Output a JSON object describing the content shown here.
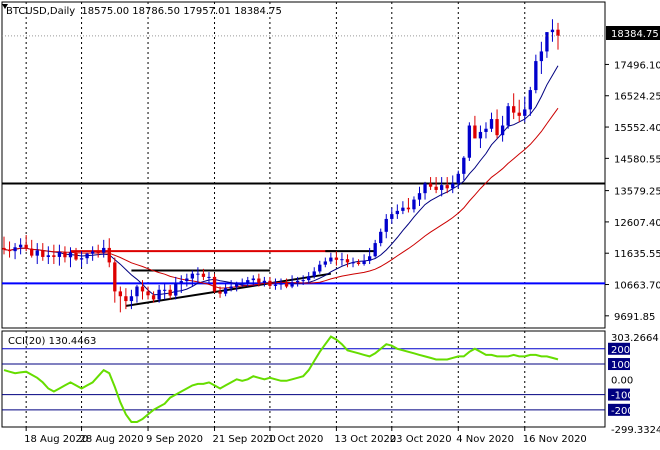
{
  "main_header": {
    "symbol": "BTCUSD,Daily",
    "ohlc": "18575.00 18786.50 17957.01 18384.75"
  },
  "indicator_header": {
    "text": "CCI(20) 130.4463"
  },
  "current_price_label": "18384.75",
  "price_ticks": [
    "17496.10",
    "16524.25",
    "15552.40",
    "14580.55",
    "13579.25",
    "12607.40",
    "11635.55",
    "10663.70",
    "9691.85"
  ],
  "cci_ticks": [
    "303.2664",
    "200",
    "100",
    "0.00",
    "-100",
    "-200",
    "-299.3324"
  ],
  "date_ticks": [
    "18 Aug 2020",
    "28 Aug 2020",
    "9 Sep 2020",
    "21 Sep 2020",
    "1 Oct 2020",
    "13 Oct 2020",
    "23 Oct 2020",
    "4 Nov 2020",
    "16 Nov 2020"
  ],
  "colors": {
    "bull_candle": "#0000cc",
    "bear_candle": "#dd0000",
    "ma_fast": "#000080",
    "ma_mid": "#cc0000",
    "ma_slow": "#0000ff",
    "cci_line": "#66dd00",
    "level_200": "#0000cc",
    "level_100": "#000080",
    "level_neg100": "#000080",
    "level_neg200": "#000080",
    "support_resistance": "#000000",
    "last_price_marker": "#cc0000",
    "grid": "#000000"
  },
  "chart_data": [
    {
      "type": "candlestick",
      "symbol": "BTCUSD",
      "timeframe": "Daily",
      "ylim": [
        9500,
        19000
      ],
      "dates": [
        "2020-08-14",
        "2020-08-15",
        "2020-08-16",
        "2020-08-17",
        "2020-08-18",
        "2020-08-19",
        "2020-08-20",
        "2020-08-21",
        "2020-08-22",
        "2020-08-23",
        "2020-08-24",
        "2020-08-25",
        "2020-08-26",
        "2020-08-27",
        "2020-08-28",
        "2020-08-29",
        "2020-08-30",
        "2020-08-31",
        "2020-09-01",
        "2020-09-02",
        "2020-09-03",
        "2020-09-04",
        "2020-09-05",
        "2020-09-06",
        "2020-09-07",
        "2020-09-08",
        "2020-09-09",
        "2020-09-10",
        "2020-09-11",
        "2020-09-12",
        "2020-09-13",
        "2020-09-14",
        "2020-09-15",
        "2020-09-16",
        "2020-09-17",
        "2020-09-18",
        "2020-09-19",
        "2020-09-20",
        "2020-09-21",
        "2020-09-22",
        "2020-09-23",
        "2020-09-24",
        "2020-09-25",
        "2020-09-26",
        "2020-09-27",
        "2020-09-28",
        "2020-09-29",
        "2020-09-30",
        "2020-10-01",
        "2020-10-02",
        "2020-10-03",
        "2020-10-04",
        "2020-10-05",
        "2020-10-06",
        "2020-10-07",
        "2020-10-08",
        "2020-10-09",
        "2020-10-10",
        "2020-10-11",
        "2020-10-12",
        "2020-10-13",
        "2020-10-14",
        "2020-10-15",
        "2020-10-16",
        "2020-10-17",
        "2020-10-18",
        "2020-10-19",
        "2020-10-20",
        "2020-10-21",
        "2020-10-22",
        "2020-10-23",
        "2020-10-24",
        "2020-10-25",
        "2020-10-26",
        "2020-10-27",
        "2020-10-28",
        "2020-10-29",
        "2020-10-30",
        "2020-10-31",
        "2020-11-01",
        "2020-11-02",
        "2020-11-03",
        "2020-11-04",
        "2020-11-05",
        "2020-11-06",
        "2020-11-07",
        "2020-11-08",
        "2020-11-09",
        "2020-11-10",
        "2020-11-11",
        "2020-11-12",
        "2020-11-13",
        "2020-11-14",
        "2020-11-15",
        "2020-11-16",
        "2020-11-17",
        "2020-11-18",
        "2020-11-19",
        "2020-11-20",
        "2020-11-21",
        "2020-11-22"
      ],
      "open": [
        11800,
        11750,
        11700,
        11820,
        11900,
        11780,
        11560,
        11720,
        11520,
        11570,
        11520,
        11680,
        11510,
        11660,
        11440,
        11480,
        11620,
        11690,
        11660,
        11800,
        11350,
        10450,
        10300,
        10150,
        10300,
        10600,
        10450,
        10330,
        10200,
        10500,
        10500,
        10320,
        10700,
        10770,
        10850,
        11000,
        11000,
        10900,
        10900,
        10450,
        10380,
        10550,
        10600,
        10700,
        10700,
        10800,
        10850,
        10720,
        10780,
        10620,
        10660,
        10700,
        10600,
        10730,
        10780,
        10800,
        10920,
        11070,
        11280,
        11380,
        11500,
        11430,
        11450,
        11350,
        11350,
        11300,
        11400,
        11540,
        11950,
        12300,
        12700,
        12850,
        12950,
        13050,
        13000,
        13300,
        13500,
        13800,
        13700,
        13600,
        13750,
        13650,
        13800,
        14100,
        14600,
        15600,
        15200,
        15400,
        15500,
        15800,
        15300,
        15600,
        16200,
        16000,
        15900,
        16100,
        16700,
        17600,
        17900,
        18500,
        18575
      ],
      "high": [
        12150,
        12000,
        11950,
        12100,
        12200,
        12050,
        11950,
        11950,
        11850,
        11900,
        11900,
        11850,
        11820,
        11800,
        11700,
        11650,
        11850,
        11900,
        12050,
        12100,
        11500,
        10600,
        10550,
        10500,
        10650,
        10800,
        10600,
        10450,
        10650,
        10700,
        10650,
        10900,
        10950,
        11000,
        11100,
        11200,
        11150,
        11050,
        11000,
        10600,
        10700,
        10800,
        10750,
        10850,
        10900,
        10950,
        11000,
        10900,
        10900,
        10850,
        10850,
        10850,
        10950,
        10900,
        10950,
        11050,
        11200,
        11400,
        11500,
        11650,
        11700,
        11650,
        11600,
        11500,
        11450,
        11600,
        11800,
        12050,
        12400,
        12850,
        13050,
        13150,
        13250,
        13350,
        13400,
        13700,
        13850,
        14000,
        14000,
        14000,
        14000,
        14050,
        14200,
        14650,
        15700,
        15900,
        15600,
        15700,
        16000,
        16100,
        15900,
        16300,
        16600,
        16400,
        16500,
        16800,
        17800,
        18200,
        18500,
        18900,
        18786
      ],
      "low": [
        11600,
        11500,
        11450,
        11600,
        11700,
        11500,
        11300,
        11400,
        11300,
        11300,
        11250,
        11350,
        11200,
        11400,
        11200,
        11300,
        11400,
        11500,
        11500,
        11200,
        10100,
        9800,
        9900,
        9900,
        10100,
        10200,
        10200,
        10100,
        10100,
        10200,
        10200,
        10200,
        10400,
        10600,
        10600,
        10700,
        10800,
        10700,
        10400,
        10250,
        10300,
        10450,
        10450,
        10600,
        10600,
        10650,
        10600,
        10600,
        10550,
        10500,
        10500,
        10550,
        10550,
        10600,
        10650,
        10700,
        10850,
        11000,
        11200,
        11300,
        11250,
        11250,
        11200,
        11200,
        11250,
        11250,
        11300,
        11500,
        11850,
        12100,
        12550,
        12700,
        12850,
        12900,
        12900,
        13100,
        13300,
        13600,
        13500,
        13400,
        13500,
        13500,
        13650,
        13900,
        14500,
        15200,
        14900,
        15200,
        15400,
        15200,
        15100,
        15500,
        15800,
        15700,
        15700,
        15900,
        16600,
        17200,
        17700,
        18200,
        17957
      ],
      "close": [
        11750,
        11700,
        11820,
        11900,
        11780,
        11560,
        11720,
        11520,
        11570,
        11520,
        11680,
        11510,
        11660,
        11440,
        11480,
        11620,
        11690,
        11660,
        11800,
        11350,
        10450,
        10300,
        10150,
        10300,
        10600,
        10450,
        10330,
        10200,
        10500,
        10500,
        10320,
        10700,
        10770,
        10850,
        11000,
        11000,
        10900,
        10900,
        10450,
        10380,
        10550,
        10600,
        10700,
        10700,
        10800,
        10850,
        10720,
        10780,
        10620,
        10660,
        10700,
        10600,
        10730,
        10780,
        10800,
        10920,
        11070,
        11280,
        11380,
        11500,
        11430,
        11450,
        11350,
        11350,
        11300,
        11400,
        11540,
        11950,
        12300,
        12700,
        12850,
        12950,
        13050,
        13000,
        13300,
        13500,
        13800,
        13700,
        13600,
        13750,
        13650,
        13800,
        14100,
        14600,
        15600,
        15200,
        15400,
        15500,
        15800,
        15300,
        15600,
        16200,
        16000,
        15900,
        16100,
        16700,
        17600,
        17900,
        18500,
        18575,
        18384.75
      ],
      "last_price": 18384.75,
      "horizontal_levels": [
        13800,
        10700
      ],
      "resistance_segments": [
        {
          "from": "2020-08-26",
          "to": "2020-10-13",
          "value": 11700
        },
        {
          "from": "2020-09-06",
          "to": "2020-10-01",
          "value": 11100
        },
        {
          "from": "2020-10-11",
          "to": "2020-10-20",
          "value": 11700
        }
      ],
      "trendline": {
        "from_date": "2020-09-05",
        "from_value": 10000,
        "to_date": "2020-10-12",
        "to_value": 11000
      }
    },
    {
      "type": "line",
      "name": "CCI(20)",
      "last_value": 130.4463,
      "ylim": [
        -299.3324,
        303.2664
      ],
      "levels": [
        200,
        100,
        -100,
        -200
      ],
      "values": [
        60,
        50,
        40,
        45,
        50,
        30,
        10,
        -20,
        -60,
        -80,
        -60,
        -40,
        -20,
        -40,
        -60,
        -40,
        -20,
        20,
        60,
        40,
        -50,
        -150,
        -230,
        -280,
        -280,
        -260,
        -230,
        -200,
        -180,
        -160,
        -120,
        -100,
        -80,
        -60,
        -40,
        -30,
        -30,
        -20,
        -40,
        -60,
        -40,
        -20,
        0,
        -10,
        0,
        20,
        10,
        0,
        10,
        0,
        -10,
        -10,
        0,
        10,
        20,
        60,
        120,
        180,
        230,
        280,
        260,
        230,
        190,
        180,
        170,
        160,
        150,
        170,
        200,
        230,
        220,
        200,
        190,
        180,
        170,
        160,
        150,
        140,
        130,
        130,
        130,
        140,
        150,
        150,
        180,
        200,
        180,
        160,
        160,
        150,
        150,
        150,
        160,
        150,
        150,
        160,
        160,
        150,
        150,
        140,
        130.4463
      ]
    }
  ]
}
